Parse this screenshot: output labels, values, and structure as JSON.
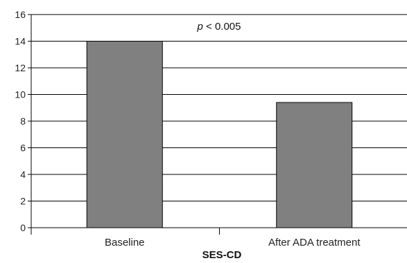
{
  "chart_data": {
    "type": "bar",
    "categories": [
      "Baseline",
      "After ADA treatment"
    ],
    "values": [
      14,
      9.4
    ],
    "xlabel": "SES-CD",
    "ylabel": "",
    "ylim": [
      0,
      16
    ],
    "yticks": [
      "0",
      "2",
      "4",
      "6",
      "8",
      "10",
      "12",
      "14",
      "16"
    ],
    "grid": true,
    "annotation": {
      "p_symbol": "p",
      "p_text": " < 0.005"
    },
    "colors": {
      "bar_fill": "#808080",
      "bar_stroke": "#000000",
      "grid": "#000000"
    }
  }
}
